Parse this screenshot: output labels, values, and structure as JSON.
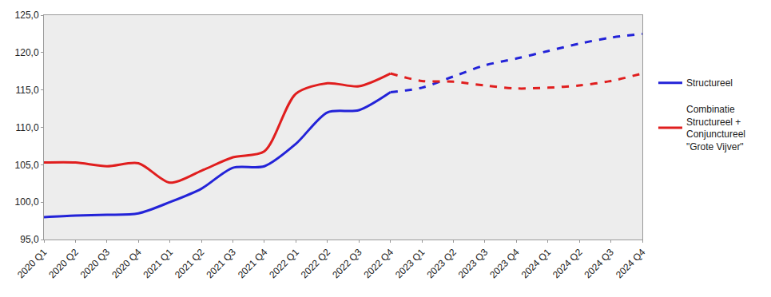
{
  "chart_data": {
    "type": "line",
    "categories": [
      "2020 Q1",
      "2020 Q2",
      "2020 Q3",
      "2020 Q4",
      "2021 Q1",
      "2021 Q2",
      "2021 Q3",
      "2021 Q4",
      "2022 Q1",
      "2022 Q2",
      "2022 Q3",
      "2022 Q4",
      "2023 Q1",
      "2023 Q2",
      "2023 Q3",
      "2023 Q4",
      "2024 Q1",
      "2024 Q2",
      "2024 Q3",
      "2024 Q4"
    ],
    "series": [
      {
        "name": "Structureel",
        "color": "#2323d8",
        "line_style": "solid",
        "values": [
          98.0,
          98.2,
          98.3,
          98.5,
          100.0,
          101.8,
          104.6,
          104.8,
          107.8,
          112.0,
          112.3,
          114.7,
          null,
          null,
          null,
          null,
          null,
          null,
          null,
          null
        ]
      },
      {
        "name": "Structureel",
        "color": "#2323d8",
        "line_style": "dashed",
        "values": [
          null,
          null,
          null,
          null,
          null,
          null,
          null,
          null,
          null,
          null,
          null,
          114.7,
          115.3,
          116.8,
          118.3,
          119.2,
          120.2,
          121.2,
          122.0,
          122.5
        ]
      },
      {
        "name": "Combinatie Structureel + Conjunctureel \"Grote Vijver\"",
        "color": "#e01e1e",
        "line_style": "solid",
        "values": [
          105.3,
          105.3,
          104.8,
          105.2,
          102.6,
          104.2,
          106.0,
          106.8,
          114.5,
          115.9,
          115.5,
          117.2,
          null,
          null,
          null,
          null,
          null,
          null,
          null,
          null
        ]
      },
      {
        "name": "Combinatie Structureel + Conjunctureel \"Grote Vijver\"",
        "color": "#e01e1e",
        "line_style": "dashed",
        "values": [
          null,
          null,
          null,
          null,
          null,
          null,
          null,
          null,
          null,
          null,
          null,
          117.2,
          116.2,
          116.1,
          115.6,
          115.2,
          115.3,
          115.6,
          116.2,
          117.2
        ]
      }
    ],
    "ylim": [
      95,
      125
    ],
    "yticks": [
      {
        "value": 95,
        "label": "95,0"
      },
      {
        "value": 100,
        "label": "100,0"
      },
      {
        "value": 105,
        "label": "105,0"
      },
      {
        "value": 110,
        "label": "110,0"
      },
      {
        "value": 115,
        "label": "115,0"
      },
      {
        "value": 120,
        "label": "120,0"
      },
      {
        "value": 125,
        "label": "125,0"
      }
    ],
    "grid": false,
    "legend": "right"
  }
}
